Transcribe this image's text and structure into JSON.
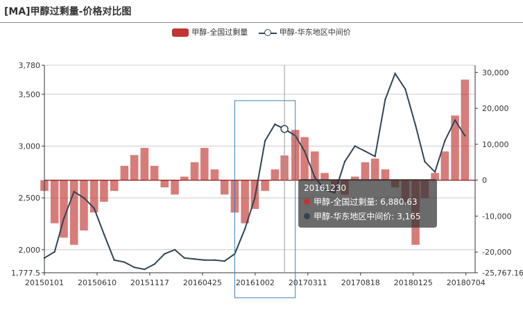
{
  "title": "[MA]甲醇过剩量-价格对比图",
  "colors": {
    "bar": "#c23531",
    "line": "#2f4554"
  },
  "legend": {
    "bar_label": "甲醇-全国过剩量",
    "line_label": "甲醇-华东地区中间价"
  },
  "tooltip": {
    "date": "20161230",
    "bar_text": "甲醇-全国过剩量: 6,880.63",
    "line_text": "甲醇-华东地区中间价: 3,165"
  },
  "chart_data": {
    "type": "bar",
    "x_tick_labels": [
      "20150101",
      "20150610",
      "20151117",
      "20160425",
      "20161002",
      "20170311",
      "20170818",
      "20180125",
      "20180704"
    ],
    "y_left_ticks": [
      "3,780",
      "3,500",
      "3,000",
      "2,500",
      "2,000",
      "1,777.5"
    ],
    "y_right_ticks": [
      "30,000",
      "20,000",
      "10,000",
      "0",
      "-10,000",
      "-20,000",
      "-25,767.16"
    ],
    "y_left_range": [
      1777.5,
      3780
    ],
    "y_right_range": [
      -25767.16,
      32000
    ],
    "series": [
      {
        "name": "甲醇-全国过剩量",
        "type": "bar",
        "axis": "right",
        "x": [
          "20150101",
          "20150201",
          "20150301",
          "20150401",
          "20150501",
          "20150601",
          "20150701",
          "20150801",
          "20150901",
          "20151001",
          "20151101",
          "20151201",
          "20160101",
          "20160201",
          "20160301",
          "20160401",
          "20160501",
          "20160601",
          "20160701",
          "20160801",
          "20160901",
          "20161001",
          "20161101",
          "20161201",
          "20161230",
          "20170201",
          "20170301",
          "20170401",
          "20170501",
          "20170601",
          "20170701",
          "20170801",
          "20170901",
          "20171001",
          "20171101",
          "20171201",
          "20180101",
          "20180201",
          "20180301",
          "20180401",
          "20180501",
          "20180601",
          "20180701"
        ],
        "values": [
          -3000,
          -12000,
          -16000,
          -18000,
          -14000,
          -9000,
          -6000,
          -3000,
          4000,
          7000,
          9000,
          4000,
          -2000,
          -4000,
          1000,
          5000,
          9000,
          3000,
          -4000,
          -9000,
          -12000,
          -8000,
          -3000,
          3000,
          6880.63,
          14000,
          12000,
          8000,
          2000,
          -3000,
          -4000,
          1000,
          5000,
          6000,
          3000,
          -2000,
          -6000,
          -18000,
          -5000,
          2000,
          8000,
          18000,
          28000
        ]
      },
      {
        "name": "甲醇-华东地区中间价",
        "type": "line",
        "axis": "left",
        "x": [
          "20150101",
          "20150201",
          "20150301",
          "20150401",
          "20150501",
          "20150601",
          "20150701",
          "20150801",
          "20150901",
          "20151001",
          "20151101",
          "20151201",
          "20160101",
          "20160201",
          "20160301",
          "20160401",
          "20160501",
          "20160601",
          "20160701",
          "20160801",
          "20160901",
          "20161001",
          "20161101",
          "20161201",
          "20161230",
          "20170201",
          "20170301",
          "20170401",
          "20170501",
          "20170601",
          "20170701",
          "20170801",
          "20170901",
          "20171001",
          "20171101",
          "20171201",
          "20180101",
          "20180201",
          "20180301",
          "20180401",
          "20180501",
          "20180601",
          "20180701"
        ],
        "values": [
          1920,
          1980,
          2300,
          2560,
          2500,
          2400,
          2150,
          1900,
          1880,
          1830,
          1810,
          1860,
          1960,
          2000,
          1920,
          1910,
          1900,
          1900,
          1890,
          1960,
          2200,
          2500,
          3050,
          3210,
          3165,
          3100,
          2950,
          2700,
          2580,
          2550,
          2850,
          3000,
          2950,
          2900,
          3450,
          3700,
          3550,
          3200,
          2850,
          2750,
          3050,
          3250,
          3100
        ]
      }
    ]
  }
}
